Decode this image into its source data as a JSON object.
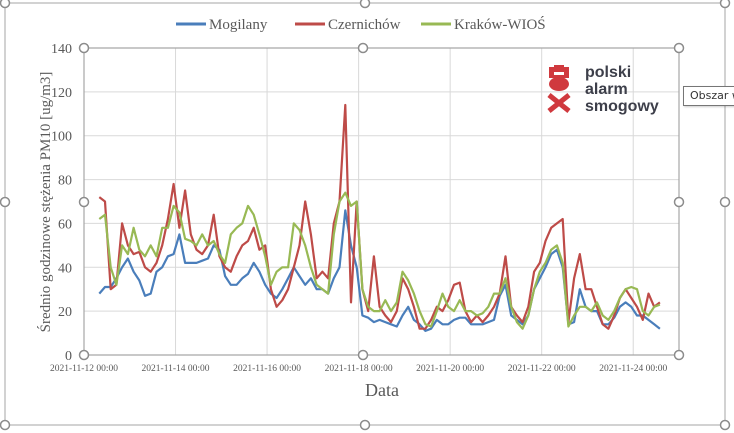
{
  "chart_data": {
    "type": "line",
    "title": "",
    "xlabel": "Data",
    "ylabel": "Średnio godzinowe stężenia PM10 [ug/m3]",
    "ylim": [
      0,
      140
    ],
    "yticks": [
      "0",
      "20",
      "40",
      "60",
      "80",
      "100",
      "120",
      "140"
    ],
    "xlim": [
      "2021-11-12 00:00",
      "2021-11-25 00:00"
    ],
    "xticks": [
      "2021-11-12 00:00",
      "2021-11-14 00:00",
      "2021-11-16 00:00",
      "2021-11-18 00:00",
      "2021-11-20 00:00",
      "2021-11-22 00:00",
      "2021-11-24 00:00"
    ],
    "grid": true,
    "legend": "top",
    "x": [
      "2021-11-12 08:00",
      "2021-11-12 11:00",
      "2021-11-12 14:00",
      "2021-11-12 17:00",
      "2021-11-12 20:00",
      "2021-11-12 23:00",
      "2021-11-13 02:00",
      "2021-11-13 05:00",
      "2021-11-13 08:00",
      "2021-11-13 11:00",
      "2021-11-13 14:00",
      "2021-11-13 17:00",
      "2021-11-13 20:00",
      "2021-11-13 23:00",
      "2021-11-14 02:00",
      "2021-11-14 05:00",
      "2021-11-14 08:00",
      "2021-11-14 11:00",
      "2021-11-14 14:00",
      "2021-11-14 17:00",
      "2021-11-14 20:00",
      "2021-11-14 23:00",
      "2021-11-15 02:00",
      "2021-11-15 05:00",
      "2021-11-15 08:00",
      "2021-11-15 11:00",
      "2021-11-15 14:00",
      "2021-11-15 17:00",
      "2021-11-15 20:00",
      "2021-11-15 23:00",
      "2021-11-16 02:00",
      "2021-11-16 05:00",
      "2021-11-16 08:00",
      "2021-11-16 11:00",
      "2021-11-16 14:00",
      "2021-11-16 17:00",
      "2021-11-16 20:00",
      "2021-11-16 23:00",
      "2021-11-17 02:00",
      "2021-11-17 05:00",
      "2021-11-17 08:00",
      "2021-11-17 11:00",
      "2021-11-17 14:00",
      "2021-11-17 17:00",
      "2021-11-17 20:00",
      "2021-11-17 23:00",
      "2021-11-18 02:00",
      "2021-11-18 05:00",
      "2021-11-18 08:00",
      "2021-11-18 11:00",
      "2021-11-18 14:00",
      "2021-11-18 17:00",
      "2021-11-18 20:00",
      "2021-11-18 23:00",
      "2021-11-19 02:00",
      "2021-11-19 05:00",
      "2021-11-19 08:00",
      "2021-11-19 11:00",
      "2021-11-19 14:00",
      "2021-11-19 17:00",
      "2021-11-19 20:00",
      "2021-11-19 23:00",
      "2021-11-20 02:00",
      "2021-11-20 05:00",
      "2021-11-20 08:00",
      "2021-11-20 11:00",
      "2021-11-20 14:00",
      "2021-11-20 17:00",
      "2021-11-20 20:00",
      "2021-11-20 23:00",
      "2021-11-21 02:00",
      "2021-11-21 05:00",
      "2021-11-21 08:00",
      "2021-11-21 11:00",
      "2021-11-21 14:00",
      "2021-11-21 17:00",
      "2021-11-21 20:00",
      "2021-11-21 23:00",
      "2021-11-22 02:00",
      "2021-11-22 05:00",
      "2021-11-22 08:00",
      "2021-11-22 11:00",
      "2021-11-22 14:00",
      "2021-11-22 17:00",
      "2021-11-22 20:00",
      "2021-11-22 23:00",
      "2021-11-23 02:00",
      "2021-11-23 05:00",
      "2021-11-23 08:00",
      "2021-11-23 11:00",
      "2021-11-23 14:00",
      "2021-11-23 17:00",
      "2021-11-23 20:00",
      "2021-11-23 23:00",
      "2021-11-24 02:00",
      "2021-11-24 05:00",
      "2021-11-24 08:00",
      "2021-11-24 11:00",
      "2021-11-24 14:00"
    ],
    "series": [
      {
        "name": "Mogilany",
        "color": "#4a7ebb",
        "values": [
          28,
          31,
          31,
          35,
          40,
          44,
          38,
          34,
          27,
          28,
          38,
          40,
          45,
          46,
          55,
          42,
          42,
          42,
          43,
          44,
          50,
          48,
          36,
          32,
          32,
          35,
          37,
          42,
          38,
          32,
          28,
          26,
          30,
          35,
          40,
          36,
          32,
          35,
          30,
          30,
          28,
          35,
          40,
          66,
          50,
          40,
          18,
          17,
          15,
          16,
          15,
          14,
          13,
          18,
          22,
          16,
          14,
          11,
          12,
          16,
          14,
          14,
          16,
          17,
          17,
          14,
          14,
          14,
          15,
          16,
          27,
          32,
          18,
          16,
          14,
          18,
          30,
          35,
          40,
          46,
          48,
          40,
          14,
          15,
          30,
          22,
          20,
          20,
          14,
          14,
          17,
          22,
          24,
          22,
          18,
          18,
          16,
          14,
          12
        ]
      },
      {
        "name": "Czernichów",
        "color": "#be4b48",
        "values": [
          72,
          70,
          30,
          32,
          60,
          50,
          46,
          47,
          40,
          38,
          42,
          50,
          62,
          78,
          58,
          75,
          55,
          48,
          46,
          50,
          64,
          45,
          40,
          38,
          45,
          50,
          52,
          58,
          48,
          50,
          30,
          22,
          25,
          30,
          40,
          50,
          70,
          55,
          35,
          38,
          35,
          60,
          70,
          114,
          24,
          70,
          30,
          20,
          45,
          22,
          18,
          15,
          20,
          35,
          30,
          22,
          12,
          12,
          16,
          22,
          20,
          25,
          32,
          33,
          20,
          15,
          18,
          15,
          18,
          22,
          28,
          45,
          22,
          18,
          15,
          22,
          38,
          42,
          52,
          58,
          60,
          62,
          15,
          35,
          46,
          30,
          30,
          22,
          14,
          12,
          18,
          26,
          30,
          26,
          22,
          16,
          28,
          22,
          24
        ]
      },
      {
        "name": "Kraków-WIOŚ",
        "color": "#98b954",
        "values": [
          62,
          64,
          40,
          32,
          50,
          46,
          58,
          48,
          45,
          50,
          45,
          58,
          58,
          68,
          65,
          53,
          52,
          50,
          55,
          50,
          52,
          46,
          42,
          55,
          58,
          60,
          68,
          64,
          55,
          45,
          32,
          38,
          40,
          40,
          60,
          57,
          50,
          40,
          32,
          30,
          28,
          55,
          70,
          74,
          68,
          70,
          30,
          22,
          20,
          20,
          25,
          20,
          24,
          38,
          34,
          28,
          20,
          14,
          13,
          20,
          28,
          22,
          20,
          25,
          20,
          20,
          18,
          19,
          22,
          28,
          28,
          35,
          22,
          15,
          12,
          18,
          30,
          38,
          42,
          48,
          50,
          42,
          13,
          18,
          22,
          22,
          20,
          24,
          18,
          16,
          20,
          26,
          30,
          31,
          30,
          20,
          18,
          22,
          23
        ]
      }
    ]
  },
  "tooltip": "Obszar w",
  "logo": {
    "lines": [
      "polski",
      "alarm",
      "smogowy"
    ],
    "icon_color": "#d0393e",
    "text_color": "#3d3f4a"
  },
  "colors": {
    "grid": "#d9d9d9",
    "frame": "#a6a6a6",
    "text": "#595959"
  }
}
